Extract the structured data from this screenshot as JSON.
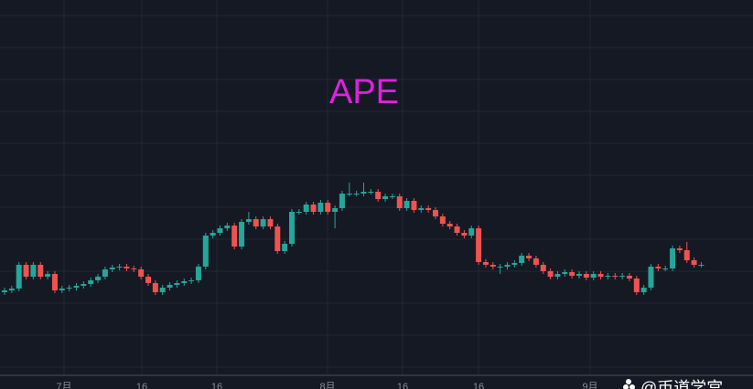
{
  "chart_data": {
    "type": "candlestick",
    "title": "APE",
    "open": [
      90,
      92,
      94,
      120,
      107,
      120,
      107,
      110,
      92,
      94,
      95,
      97,
      99,
      103,
      107,
      115,
      117,
      118,
      116,
      115,
      107,
      100,
      90,
      95,
      98,
      100,
      102,
      103,
      118,
      152,
      155,
      160,
      163,
      140,
      167,
      170,
      162,
      170,
      162,
      135,
      143,
      178,
      178,
      186,
      178,
      188,
      178,
      182,
      198,
      198,
      198,
      200,
      200,
      192,
      195,
      195,
      182,
      190,
      180,
      182,
      180,
      173,
      165,
      162,
      155,
      152,
      160,
      123,
      120,
      118,
      118,
      120,
      122,
      130,
      127,
      120,
      113,
      107,
      110,
      112,
      108,
      110,
      106,
      110,
      107,
      108,
      107,
      108,
      105,
      90,
      95,
      118,
      116,
      116,
      138,
      136,
      125,
      120
    ],
    "high": [
      95,
      97,
      123,
      123,
      123,
      123,
      113,
      113,
      97,
      98,
      100,
      102,
      106,
      110,
      118,
      120,
      121,
      121,
      119,
      118,
      110,
      103,
      98,
      101,
      103,
      105,
      106,
      121,
      155,
      158,
      163,
      166,
      166,
      170,
      178,
      173,
      173,
      173,
      165,
      146,
      181,
      181,
      189,
      189,
      191,
      191,
      185,
      201,
      210,
      201,
      210,
      203,
      203,
      198,
      198,
      198,
      193,
      193,
      185,
      185,
      183,
      176,
      168,
      165,
      158,
      163,
      163,
      126,
      123,
      121,
      123,
      125,
      133,
      133,
      130,
      123,
      116,
      113,
      115,
      115,
      113,
      113,
      113,
      113,
      111,
      111,
      111,
      111,
      108,
      98,
      121,
      121,
      119,
      141,
      141,
      145,
      128,
      123
    ],
    "low": [
      87,
      89,
      91,
      104,
      104,
      104,
      104,
      89,
      89,
      91,
      92,
      94,
      96,
      100,
      104,
      112,
      114,
      113,
      112,
      104,
      97,
      87,
      87,
      92,
      95,
      97,
      99,
      100,
      115,
      149,
      152,
      157,
      137,
      137,
      164,
      159,
      159,
      159,
      132,
      132,
      140,
      175,
      175,
      175,
      175,
      175,
      160,
      179,
      195,
      195,
      195,
      197,
      189,
      189,
      192,
      179,
      179,
      177,
      177,
      177,
      170,
      162,
      159,
      152,
      149,
      149,
      120,
      117,
      115,
      110,
      115,
      117,
      119,
      124,
      117,
      110,
      104,
      104,
      107,
      105,
      105,
      103,
      103,
      104,
      104,
      104,
      104,
      102,
      87,
      87,
      92,
      113,
      113,
      113,
      133,
      122,
      117,
      117
    ],
    "close": [
      92,
      94,
      120,
      107,
      120,
      107,
      110,
      92,
      94,
      95,
      97,
      99,
      103,
      107,
      115,
      117,
      118,
      116,
      115,
      107,
      100,
      90,
      95,
      98,
      100,
      102,
      103,
      118,
      152,
      155,
      160,
      163,
      140,
      167,
      170,
      162,
      170,
      162,
      135,
      143,
      178,
      178,
      186,
      178,
      188,
      178,
      182,
      198,
      198,
      198,
      200,
      200,
      192,
      195,
      195,
      182,
      190,
      180,
      182,
      180,
      173,
      165,
      162,
      155,
      152,
      160,
      123,
      120,
      118,
      118,
      120,
      122,
      130,
      127,
      120,
      113,
      107,
      110,
      112,
      108,
      110,
      106,
      110,
      107,
      108,
      107,
      108,
      105,
      90,
      95,
      118,
      116,
      116,
      138,
      136,
      125,
      120,
      120
    ],
    "up_color": "#26a69a",
    "down_color": "#ef5350",
    "ylim": [
      0,
      410
    ],
    "grid": true,
    "x_labels": [
      "7月",
      "16",
      "16",
      "8月",
      "16",
      "16",
      "9月"
    ],
    "watermark": "@币道学宫"
  }
}
